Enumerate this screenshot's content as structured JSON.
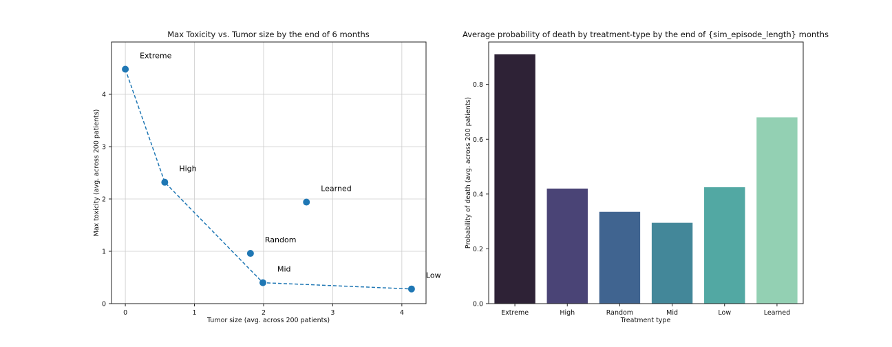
{
  "chart_data": [
    {
      "type": "scatter",
      "title": "Max Toxicity vs. Tumor size by the end of 6 months",
      "xlabel": "Tumor size (avg. across 200 patients)",
      "ylabel": "Max toxicity (avg. across 200 patients)",
      "xlim": [
        -0.2,
        4.35
      ],
      "ylim": [
        0,
        5.0
      ],
      "xticks": [
        0,
        1,
        2,
        3,
        4
      ],
      "yticks": [
        0,
        1,
        2,
        3,
        4
      ],
      "grid": true,
      "color": "#1f77b4",
      "points": [
        {
          "label": "Extreme",
          "x": 0.0,
          "y": 4.48
        },
        {
          "label": "High",
          "x": 0.57,
          "y": 2.32
        },
        {
          "label": "Random",
          "x": 1.81,
          "y": 0.96
        },
        {
          "label": "Mid",
          "x": 1.99,
          "y": 0.4
        },
        {
          "label": "Low",
          "x": 4.14,
          "y": 0.28
        },
        {
          "label": "Learned",
          "x": 2.62,
          "y": 1.94
        }
      ],
      "dashed_line_order": [
        "Extreme",
        "High",
        "Mid",
        "Low"
      ]
    },
    {
      "type": "bar",
      "title": "Average probability of death by treatment-type by the end of {sim_episode_length} months",
      "xlabel": "Treatment type",
      "ylabel": "Probability of death (avg. across 200 patients)",
      "ylim": [
        0,
        0.955
      ],
      "yticks": [
        0.0,
        0.2,
        0.4,
        0.6,
        0.8
      ],
      "grid": false,
      "categories": [
        "Extreme",
        "High",
        "Random",
        "Mid",
        "Low",
        "Learned"
      ],
      "values": [
        0.91,
        0.42,
        0.335,
        0.295,
        0.425,
        0.68
      ],
      "colors": [
        "#2e2236",
        "#4a4476",
        "#406490",
        "#438799",
        "#52a8a3",
        "#93d0b3"
      ]
    }
  ]
}
